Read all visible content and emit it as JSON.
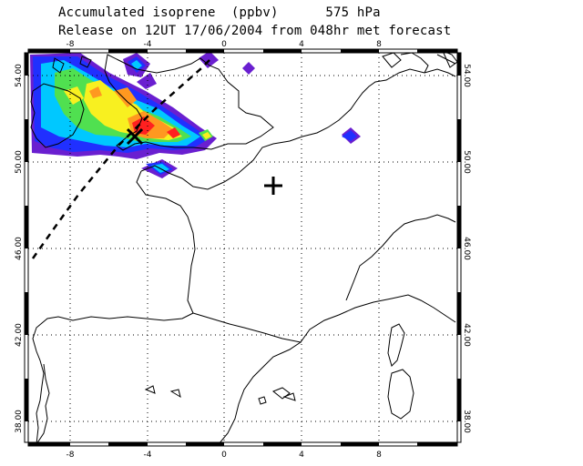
{
  "header": {
    "title_line1": "Accumulated isoprene  (ppbv)      575 hPa",
    "title_line2": "Release on 12UT 17/06/2004 from 048hr met forecast"
  },
  "axes": {
    "lon_ticks": [
      "-8",
      "-4",
      "0",
      "4",
      "8"
    ],
    "lat_ticks": [
      "54.00",
      "50.00",
      "46.00",
      "42.00",
      "38.00"
    ],
    "lon_range": [
      -10,
      12
    ],
    "lat_range": [
      37.5,
      55.5
    ],
    "grid": "dotted"
  },
  "markers": {
    "release_point_symbol": "plus",
    "max_symbol": "cross"
  },
  "colors": {
    "violet": "#6a1fd0",
    "blue": "#2030ff",
    "cyan": "#00c8ff",
    "green": "#50e050",
    "yellow": "#f8f020",
    "orange": "#ff9820",
    "red": "#ff2020"
  }
}
